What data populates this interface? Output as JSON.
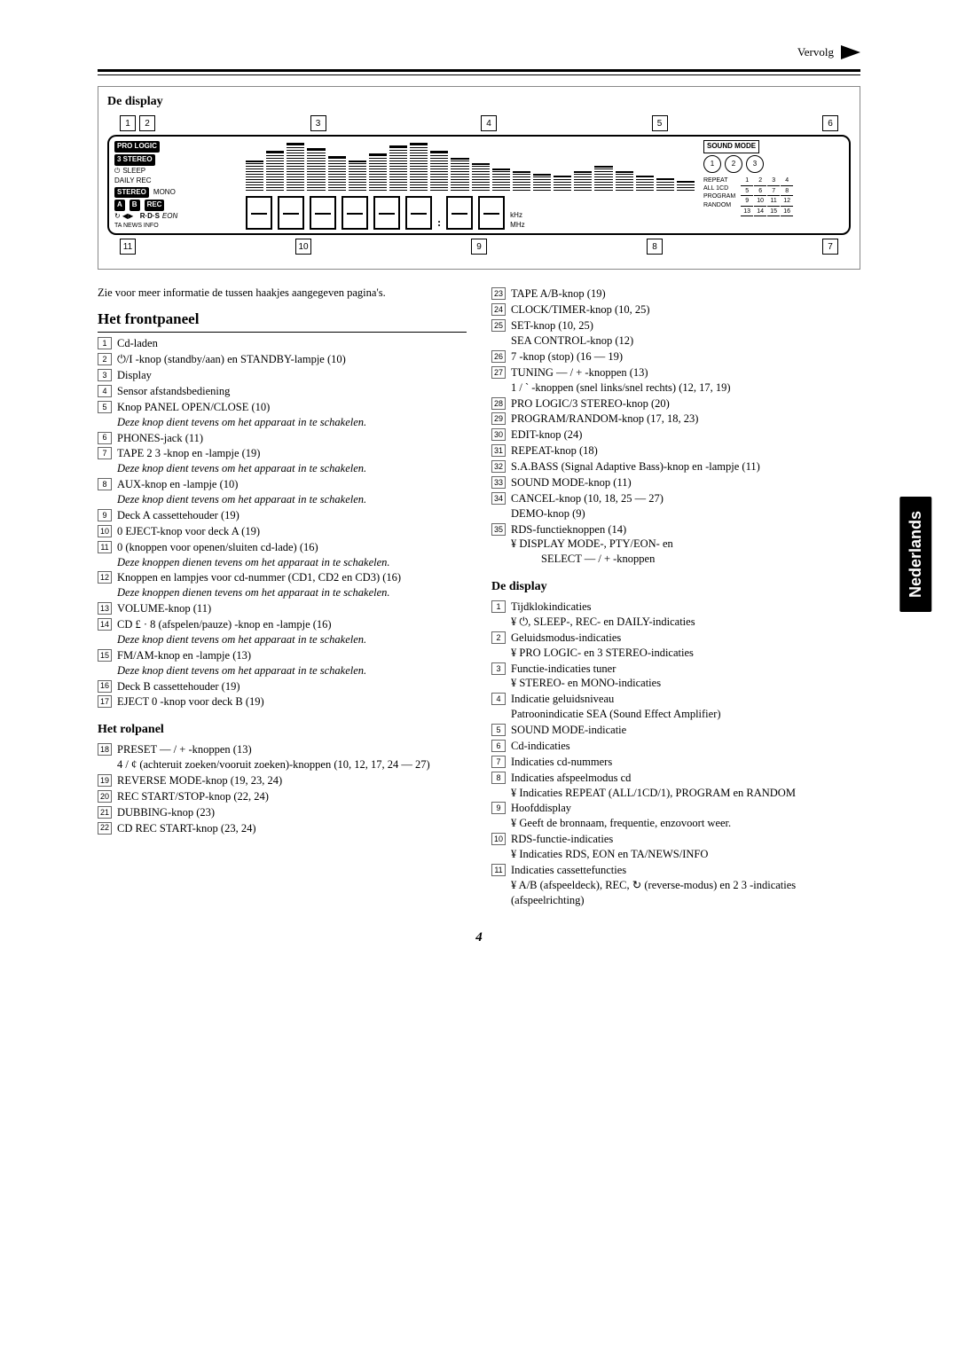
{
  "top": {
    "vervolg": "Vervolg"
  },
  "side_tab": "Nederlands",
  "page_number": "4",
  "display_section_title": "De display",
  "intro": "Zie voor meer informatie de tussen haakjes aangegeven pagina's.",
  "frontpanel_heading": "Het frontpaneel",
  "rolpanel_heading": "Het rolpanel",
  "display_heading": "De display",
  "display_badges": {
    "prologic": "PRO LOGIC",
    "three_stereo": "3 STEREO",
    "sleep": "SLEEP",
    "daily_rec": "DAILY REC",
    "stereo": "STEREO",
    "mono": "MONO",
    "a": "A",
    "b": "B",
    "rec": "REC",
    "rds": "R·D·S",
    "eon": "EON",
    "ta_news_info": "TA NEWS INFO",
    "sound_mode": "SOUND MODE",
    "repeat": "REPEAT",
    "all1cd": "ALL 1CD",
    "program": "PROGRAM",
    "random": "RANDOM",
    "khz": "kHz",
    "mhz": "MHz"
  },
  "callouts_top": [
    "1",
    "2",
    "3",
    "4",
    "5",
    "6"
  ],
  "callouts_bottom": [
    "11",
    "10",
    "9",
    "8",
    "7"
  ],
  "frontpanel": [
    {
      "n": "1",
      "t": "Cd-laden"
    },
    {
      "n": "2",
      "t": "⏻/I -knop (standby/aan) en STANDBY-lampje (10)"
    },
    {
      "n": "3",
      "t": "Display"
    },
    {
      "n": "4",
      "t": "Sensor afstandsbediening"
    },
    {
      "n": "5",
      "t": "Knop PANEL OPEN/CLOSE (10)",
      "i": "Deze knop dient tevens om het apparaat in te schakelen."
    },
    {
      "n": "6",
      "t": "PHONES-jack (11)"
    },
    {
      "n": "7",
      "t": "TAPE 2 3 -knop en -lampje (19)",
      "i": "Deze knop dient tevens om het apparaat in te schakelen."
    },
    {
      "n": "8",
      "t": "AUX-knop en -lampje (10)",
      "i": "Deze knop dient tevens om het apparaat in te schakelen."
    },
    {
      "n": "9",
      "t": "Deck A cassettehouder (19)"
    },
    {
      "n": "10",
      "t": "0 EJECT-knop voor deck A (19)"
    },
    {
      "n": "11",
      "t": "0 (knoppen voor openen/sluiten cd-lade) (16)",
      "i": "Deze knoppen dienen tevens om het apparaat in te schakelen."
    },
    {
      "n": "12",
      "t": "Knoppen en lampjes voor cd-nummer (CD1, CD2 en CD3) (16)",
      "i": "Deze knoppen dienen tevens om het apparaat in te schakelen."
    },
    {
      "n": "13",
      "t": "VOLUME-knop (11)"
    },
    {
      "n": "14",
      "t": "CD £ · 8 (afspelen/pauze) -knop en -lampje (16)",
      "i": "Deze knop dient tevens om het apparaat in te schakelen."
    },
    {
      "n": "15",
      "t": "FM/AM-knop en -lampje (13)",
      "i": "Deze knop dient tevens om het apparaat in te schakelen."
    },
    {
      "n": "16",
      "t": "Deck B cassettehouder (19)"
    },
    {
      "n": "17",
      "t": "EJECT 0 -knop voor deck B (19)"
    }
  ],
  "rolpanel": [
    {
      "n": "18",
      "t": "PRESET — / + -knoppen (13)",
      "sub": "4 / ¢  (achteruit zoeken/vooruit zoeken)-knoppen (10, 12, 17, 24 — 27)"
    },
    {
      "n": "19",
      "t": "REVERSE MODE-knop (19, 23, 24)"
    },
    {
      "n": "20",
      "t": "REC START/STOP-knop (22, 24)"
    },
    {
      "n": "21",
      "t": "DUBBING-knop (23)"
    },
    {
      "n": "22",
      "t": "CD REC START-knop (23, 24)"
    }
  ],
  "rightcol": [
    {
      "n": "23",
      "t": "TAPE A/B-knop (19)"
    },
    {
      "n": "24",
      "t": "CLOCK/TIMER-knop (10, 25)"
    },
    {
      "n": "25",
      "t": "SET-knop (10, 25)",
      "sub": "SEA CONTROL-knop (12)"
    },
    {
      "n": "26",
      "t": "7 -knop (stop) (16 — 19)"
    },
    {
      "n": "27",
      "t": "TUNING — / + -knoppen (13)",
      "sub": "1 / ` -knoppen (snel links/snel rechts) (12, 17, 19)"
    },
    {
      "n": "28",
      "t": "PRO LOGIC/3 STEREO-knop (20)"
    },
    {
      "n": "29",
      "t": "PROGRAM/RANDOM-knop (17, 18, 23)"
    },
    {
      "n": "30",
      "t": "EDIT-knop (24)"
    },
    {
      "n": "31",
      "t": "REPEAT-knop (18)"
    },
    {
      "n": "32",
      "t": "S.A.BASS (Signal Adaptive Bass)-knop en -lampje (11)"
    },
    {
      "n": "33",
      "t": "SOUND MODE-knop (11)"
    },
    {
      "n": "34",
      "t": "CANCEL-knop (10, 18, 25 — 27)",
      "sub": "DEMO-knop (9)"
    },
    {
      "n": "35",
      "t": "RDS-functieknoppen (14)",
      "sub": "¥ DISPLAY MODE-, PTY/EON- en",
      "sub2": "SELECT — / + -knoppen"
    }
  ],
  "display_list": [
    {
      "n": "1",
      "t": "Tijdklokindicaties",
      "sub": "¥ ⏻, SLEEP-, REC- en DAILY-indicaties"
    },
    {
      "n": "2",
      "t": "Geluidsmodus-indicaties",
      "sub": "¥ PRO LOGIC- en 3 STEREO-indicaties"
    },
    {
      "n": "3",
      "t": "Functie-indicaties tuner",
      "sub": "¥ STEREO- en MONO-indicaties"
    },
    {
      "n": "4",
      "t": "Indicatie geluidsniveau",
      "sub": "Patroonindicatie SEA (Sound Effect Amplifier)"
    },
    {
      "n": "5",
      "t": "SOUND MODE-indicatie"
    },
    {
      "n": "6",
      "t": "Cd-indicaties"
    },
    {
      "n": "7",
      "t": "Indicaties cd-nummers"
    },
    {
      "n": "8",
      "t": "Indicaties afspeelmodus cd",
      "sub": "¥ Indicaties REPEAT (ALL/1CD/1), PROGRAM en RANDOM"
    },
    {
      "n": "9",
      "t": "Hoofddisplay",
      "sub": "¥ Geeft de bronnaam, frequentie, enzovoort weer."
    },
    {
      "n": "10",
      "t": "RDS-functie-indicaties",
      "sub": "¥ Indicaties RDS, EON en TA/NEWS/INFO"
    },
    {
      "n": "11",
      "t": "Indicaties cassettefuncties",
      "sub": "¥ A/B (afspeeldeck), REC, ↻ (reverse-modus) en 2 3 -indicaties (afspeelrichting)"
    }
  ],
  "numgrid": [
    "1",
    "2",
    "3",
    "4",
    "5",
    "6",
    "7",
    "8",
    "9",
    "10",
    "11",
    "12",
    "13",
    "14",
    "15",
    "16"
  ]
}
